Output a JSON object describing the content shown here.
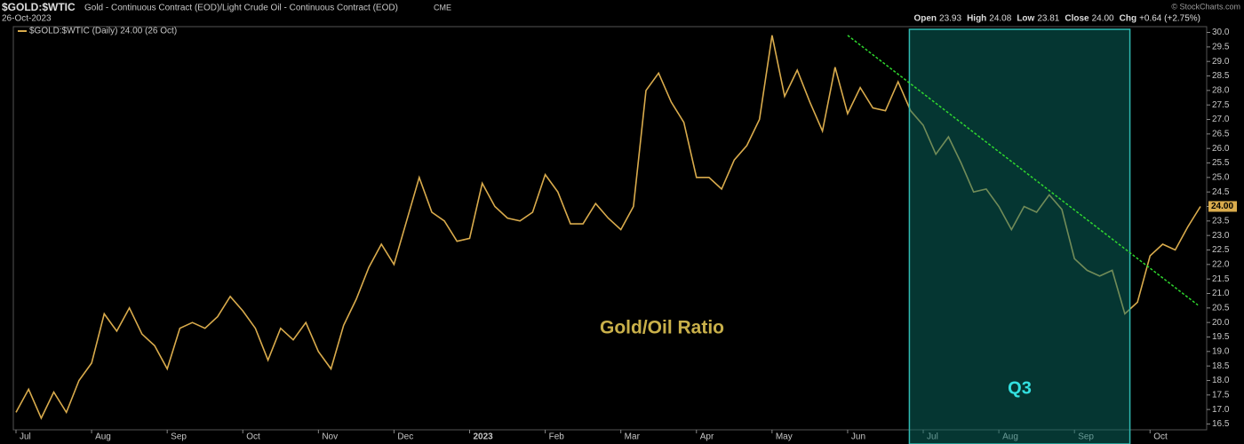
{
  "chart_data": {
    "type": "line",
    "symbol": "$GOLD:$WTIC",
    "title": "Gold - Continuous Contract (EOD)/Light Crude Oil - Continuous Contract (EOD)",
    "exchange": "CME",
    "date": "26-Oct-2023",
    "credit": "© StockCharts.com",
    "quote": [
      {
        "label": "Open",
        "value": "23.93"
      },
      {
        "label": "High",
        "value": "24.08"
      },
      {
        "label": "Low",
        "value": "23.81"
      },
      {
        "label": "Close",
        "value": "24.00"
      },
      {
        "label": "Chg",
        "value": "+0.64 (+2.75%)"
      }
    ],
    "annotation": "Gold/Oil Ratio",
    "last_label": "24.00",
    "categories": [
      "Jul",
      null,
      null,
      null,
      null,
      null,
      "Aug",
      null,
      null,
      null,
      null,
      null,
      "Sep",
      null,
      null,
      null,
      null,
      null,
      "Oct",
      null,
      null,
      null,
      null,
      null,
      "Nov",
      null,
      null,
      null,
      null,
      null,
      "Dec",
      null,
      null,
      null,
      null,
      null,
      "2023",
      null,
      null,
      null,
      null,
      null,
      "Feb",
      null,
      null,
      null,
      null,
      null,
      "Mar",
      null,
      null,
      null,
      null,
      null,
      "Apr",
      null,
      null,
      null,
      null,
      null,
      "May",
      null,
      null,
      null,
      null,
      null,
      "Jun",
      null,
      null,
      null,
      null,
      null,
      "Jul",
      null,
      null,
      null,
      null,
      null,
      "Aug",
      null,
      null,
      null,
      null,
      null,
      "Sep",
      null,
      null,
      null,
      null,
      null,
      "Oct",
      null,
      null,
      null,
      null
    ],
    "series": [
      {
        "name": "$GOLD:$WTIC (Daily) 24.00 (26 Oct)",
        "color": "#d9ab4c",
        "values": [
          16.9,
          17.7,
          16.7,
          17.6,
          16.9,
          18.0,
          18.6,
          20.3,
          19.7,
          20.5,
          19.6,
          19.2,
          18.4,
          19.8,
          20.0,
          19.8,
          20.2,
          20.9,
          20.4,
          19.8,
          18.7,
          19.8,
          19.4,
          20.0,
          19.0,
          18.4,
          19.9,
          20.8,
          21.9,
          22.7,
          22.0,
          23.5,
          25.0,
          23.8,
          23.5,
          22.8,
          22.9,
          24.8,
          24.0,
          23.6,
          23.5,
          23.8,
          25.1,
          24.5,
          23.4,
          23.4,
          24.1,
          23.6,
          23.2,
          24.0,
          28.0,
          28.6,
          27.6,
          26.9,
          25.0,
          25.0,
          24.6,
          25.6,
          26.1,
          27.0,
          29.9,
          27.8,
          28.7,
          27.6,
          26.6,
          28.8,
          27.2,
          28.1,
          27.4,
          27.3,
          28.3,
          27.3,
          26.8,
          25.8,
          26.4,
          25.5,
          24.5,
          24.6,
          24.0,
          23.2,
          24.0,
          23.8,
          24.4,
          23.9,
          22.2,
          21.8,
          21.6,
          21.8,
          20.3,
          20.7,
          22.3,
          22.7,
          22.5,
          23.3,
          24.0
        ]
      }
    ],
    "shaded_region": {
      "label": "Q3",
      "start": 70.9,
      "end": 88.4,
      "color": "#0a6b64"
    },
    "trendline": {
      "x": [
        66,
        93.8
      ],
      "values": [
        29.9,
        20.6
      ],
      "color": "#2fd82f"
    },
    "ylim": [
      16.3,
      30.2
    ],
    "yticks": [
      16.5,
      {
        "value": 17,
        "label": "17.0"
      },
      17.5,
      {
        "value": 18,
        "label": "18.0"
      },
      18.5,
      {
        "value": 19,
        "label": "19.0"
      },
      19.5,
      {
        "value": 20,
        "label": "20.0"
      },
      20.5,
      {
        "value": 21,
        "label": "21.0"
      },
      21.5,
      {
        "value": 22,
        "label": "22.0"
      },
      22.5,
      {
        "value": 23,
        "label": "23.0"
      },
      23.5,
      {
        "value": 24,
        "label": "24.0"
      },
      24.5,
      {
        "value": 25,
        "label": "25.0"
      },
      25.5,
      {
        "value": 26,
        "label": "26.0"
      },
      26.5,
      {
        "value": 27,
        "label": "27.0"
      },
      27.5,
      {
        "value": 28,
        "label": "28.0"
      },
      28.5,
      {
        "value": 29,
        "label": "29.0"
      },
      29.5,
      {
        "value": 30,
        "label": "30.0"
      }
    ],
    "grid": false
  }
}
